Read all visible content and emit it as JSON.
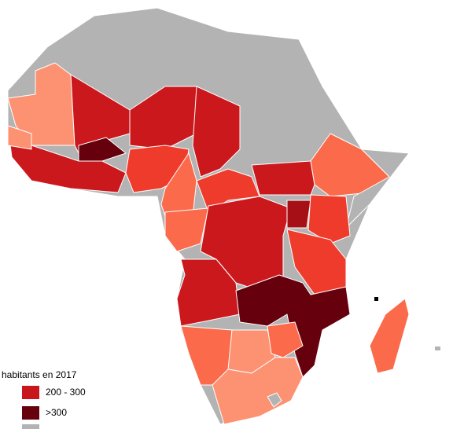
{
  "legend": {
    "title": "habitants en 2017",
    "items": [
      {
        "label": "200 - 300",
        "color": "#c8161d"
      },
      {
        "label": ">300",
        "color": "#67000d"
      }
    ]
  }
}
